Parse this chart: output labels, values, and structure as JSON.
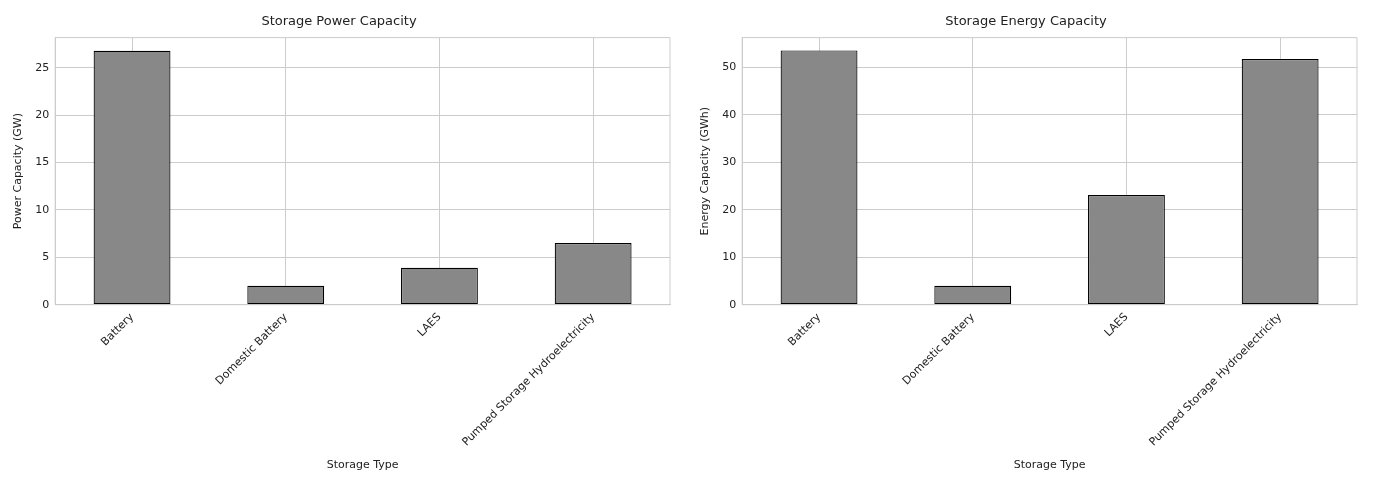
{
  "chart_data": [
    {
      "type": "bar",
      "title": "Storage Power Capacity",
      "xlabel": "Storage Type",
      "ylabel": "Power Capacity (GW)",
      "categories": [
        "Battery",
        "Domestic Battery",
        "LAES",
        "Pumped Storage Hydroelectricity"
      ],
      "series": [
        {
          "color": "#888888",
          "values": [
            26.8,
            2.0,
            3.9,
            6.5
          ]
        }
      ],
      "ylim": [
        0,
        28.2
      ],
      "yticks": [
        0,
        5,
        10,
        15,
        20,
        25
      ],
      "grid": true,
      "legend": false
    },
    {
      "type": "bar",
      "title": "Storage Energy Capacity",
      "xlabel": "Storage Type",
      "ylabel": "Energy Capacity (GWh)",
      "categories": [
        "Battery",
        "Domestic Battery",
        "LAES",
        "Pumped Storage Hydroelectricity"
      ],
      "series": [
        {
          "color": "#888888",
          "values": [
            53.6,
            4.0,
            23.1,
            51.8
          ]
        }
      ],
      "ylim": [
        0,
        56.3
      ],
      "yticks": [
        0,
        10,
        20,
        30,
        40,
        50
      ],
      "grid": true,
      "legend": false
    }
  ]
}
